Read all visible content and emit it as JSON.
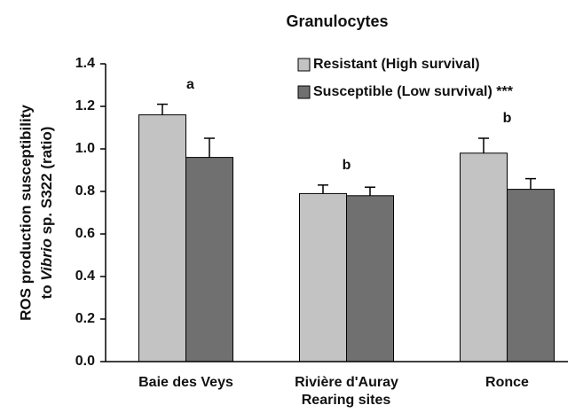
{
  "chart_data": {
    "type": "bar",
    "title": "Granulocytes",
    "xlabel": "Rearing sites",
    "ylabel": [
      "ROS production susceptibility",
      "to",
      "Vibrio",
      "sp. S322 (ratio)"
    ],
    "categories": [
      "Baie des Veys",
      "Rivière d'Auray",
      "Ronce"
    ],
    "group_labels": [
      "a",
      "b",
      "b"
    ],
    "series": [
      {
        "name": "Resistant (High survival)",
        "color": "#c3c3c3",
        "values": [
          1.16,
          0.79,
          0.98
        ],
        "errors": [
          0.05,
          0.04,
          0.07
        ]
      },
      {
        "name": "Susceptible (Low survival) ***",
        "color": "#707070",
        "values": [
          0.96,
          0.78,
          0.81
        ],
        "errors": [
          0.09,
          0.04,
          0.05
        ]
      }
    ],
    "ylim": [
      0,
      1.4
    ],
    "yticks": [
      {
        "value": 0,
        "label": "0.0"
      },
      0.2,
      0.4,
      0.6,
      0.8,
      {
        "value": 1,
        "label": "1.0"
      },
      1.2,
      1.4
    ],
    "legend": "top-right"
  }
}
